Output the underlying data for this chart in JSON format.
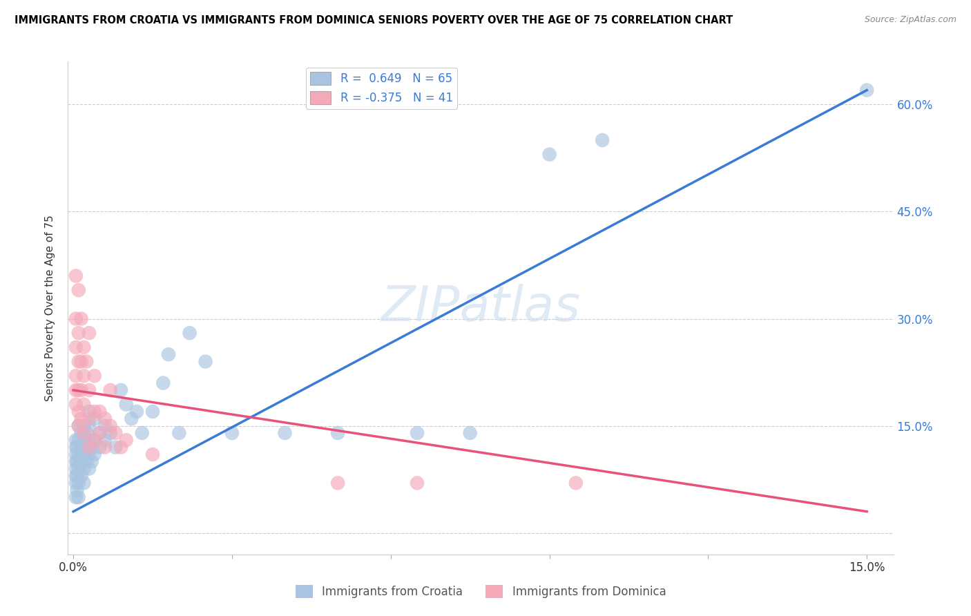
{
  "title": "IMMIGRANTS FROM CROATIA VS IMMIGRANTS FROM DOMINICA SENIORS POVERTY OVER THE AGE OF 75 CORRELATION CHART",
  "source": "Source: ZipAtlas.com",
  "ylabel": "Seniors Poverty Over the Age of 75",
  "y_ticks": [
    0.0,
    0.15,
    0.3,
    0.45,
    0.6
  ],
  "y_tick_labels": [
    "",
    "15.0%",
    "30.0%",
    "45.0%",
    "60.0%"
  ],
  "x_ticks": [
    0.0,
    0.03,
    0.06,
    0.09,
    0.12,
    0.15
  ],
  "x_tick_labels": [
    "0.0%",
    "",
    "",
    "",
    "",
    "15.0%"
  ],
  "xlim": [
    -0.001,
    0.155
  ],
  "ylim": [
    -0.03,
    0.66
  ],
  "croatia_color": "#a8c4e0",
  "dominica_color": "#f4a8b8",
  "croatia_line_color": "#3a7bd5",
  "dominica_line_color": "#e8527a",
  "croatia_R": 0.649,
  "croatia_N": 65,
  "dominica_R": -0.375,
  "dominica_N": 41,
  "blue_line": [
    [
      0.0,
      0.03
    ],
    [
      0.15,
      0.62
    ]
  ],
  "pink_line": [
    [
      0.0,
      0.2
    ],
    [
      0.15,
      0.03
    ]
  ],
  "croatia_scatter": [
    [
      0.0005,
      0.05
    ],
    [
      0.0005,
      0.07
    ],
    [
      0.0005,
      0.08
    ],
    [
      0.0005,
      0.09
    ],
    [
      0.0005,
      0.1
    ],
    [
      0.0005,
      0.11
    ],
    [
      0.0005,
      0.12
    ],
    [
      0.0005,
      0.13
    ],
    [
      0.0007,
      0.06
    ],
    [
      0.0007,
      0.08
    ],
    [
      0.0007,
      0.1
    ],
    [
      0.0007,
      0.12
    ],
    [
      0.001,
      0.05
    ],
    [
      0.001,
      0.07
    ],
    [
      0.001,
      0.09
    ],
    [
      0.001,
      0.11
    ],
    [
      0.001,
      0.13
    ],
    [
      0.001,
      0.15
    ],
    [
      0.0015,
      0.08
    ],
    [
      0.0015,
      0.1
    ],
    [
      0.0015,
      0.12
    ],
    [
      0.0015,
      0.14
    ],
    [
      0.002,
      0.07
    ],
    [
      0.002,
      0.09
    ],
    [
      0.002,
      0.11
    ],
    [
      0.002,
      0.13
    ],
    [
      0.002,
      0.15
    ],
    [
      0.0025,
      0.1
    ],
    [
      0.0025,
      0.12
    ],
    [
      0.0025,
      0.14
    ],
    [
      0.003,
      0.09
    ],
    [
      0.003,
      0.11
    ],
    [
      0.003,
      0.13
    ],
    [
      0.003,
      0.15
    ],
    [
      0.003,
      0.17
    ],
    [
      0.0035,
      0.1
    ],
    [
      0.0035,
      0.12
    ],
    [
      0.004,
      0.11
    ],
    [
      0.004,
      0.13
    ],
    [
      0.004,
      0.16
    ],
    [
      0.005,
      0.12
    ],
    [
      0.005,
      0.14
    ],
    [
      0.006,
      0.13
    ],
    [
      0.006,
      0.15
    ],
    [
      0.007,
      0.14
    ],
    [
      0.008,
      0.12
    ],
    [
      0.009,
      0.2
    ],
    [
      0.01,
      0.18
    ],
    [
      0.011,
      0.16
    ],
    [
      0.012,
      0.17
    ],
    [
      0.013,
      0.14
    ],
    [
      0.015,
      0.17
    ],
    [
      0.017,
      0.21
    ],
    [
      0.018,
      0.25
    ],
    [
      0.02,
      0.14
    ],
    [
      0.022,
      0.28
    ],
    [
      0.025,
      0.24
    ],
    [
      0.03,
      0.14
    ],
    [
      0.04,
      0.14
    ],
    [
      0.05,
      0.14
    ],
    [
      0.065,
      0.14
    ],
    [
      0.075,
      0.14
    ],
    [
      0.09,
      0.53
    ],
    [
      0.1,
      0.55
    ],
    [
      0.15,
      0.62
    ]
  ],
  "dominica_scatter": [
    [
      0.0005,
      0.36
    ],
    [
      0.0005,
      0.3
    ],
    [
      0.0005,
      0.26
    ],
    [
      0.0005,
      0.22
    ],
    [
      0.0005,
      0.2
    ],
    [
      0.0005,
      0.18
    ],
    [
      0.001,
      0.34
    ],
    [
      0.001,
      0.28
    ],
    [
      0.001,
      0.24
    ],
    [
      0.001,
      0.2
    ],
    [
      0.001,
      0.17
    ],
    [
      0.001,
      0.15
    ],
    [
      0.0015,
      0.3
    ],
    [
      0.0015,
      0.24
    ],
    [
      0.0015,
      0.2
    ],
    [
      0.0015,
      0.16
    ],
    [
      0.002,
      0.26
    ],
    [
      0.002,
      0.22
    ],
    [
      0.002,
      0.18
    ],
    [
      0.002,
      0.14
    ],
    [
      0.0025,
      0.24
    ],
    [
      0.003,
      0.28
    ],
    [
      0.003,
      0.2
    ],
    [
      0.003,
      0.16
    ],
    [
      0.003,
      0.12
    ],
    [
      0.004,
      0.22
    ],
    [
      0.004,
      0.17
    ],
    [
      0.004,
      0.13
    ],
    [
      0.005,
      0.17
    ],
    [
      0.005,
      0.14
    ],
    [
      0.006,
      0.16
    ],
    [
      0.006,
      0.12
    ],
    [
      0.007,
      0.2
    ],
    [
      0.007,
      0.15
    ],
    [
      0.008,
      0.14
    ],
    [
      0.009,
      0.12
    ],
    [
      0.01,
      0.13
    ],
    [
      0.015,
      0.11
    ],
    [
      0.05,
      0.07
    ],
    [
      0.065,
      0.07
    ],
    [
      0.095,
      0.07
    ]
  ]
}
